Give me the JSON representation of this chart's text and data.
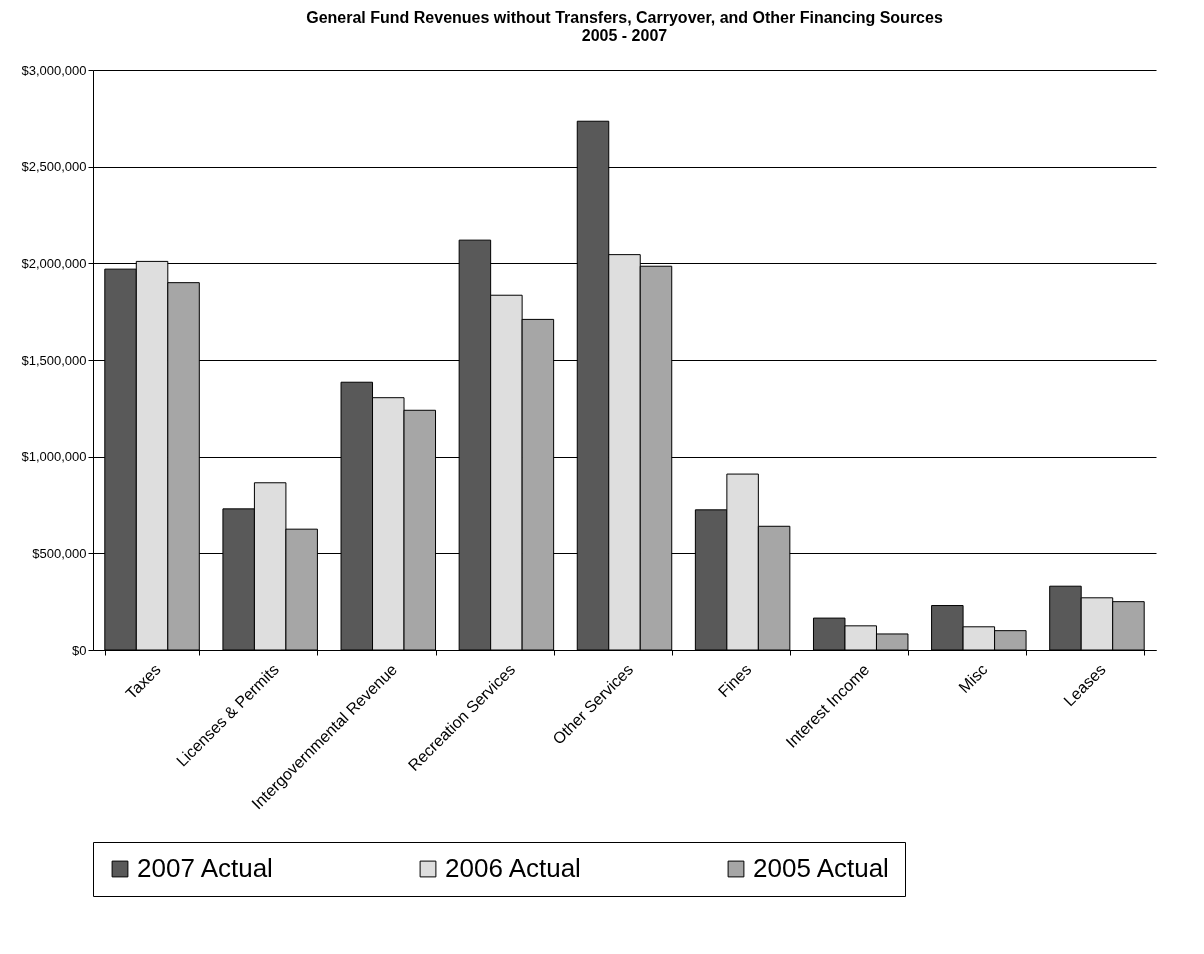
{
  "chart_data": {
    "type": "bar",
    "title": "General Fund Revenues without Transfers, Carryover, and Other Financing Sources\n2005 - 2007",
    "categories": [
      "Taxes",
      "Licenses & Permits",
      "Intergovernmental Revenue",
      "Recreation Services",
      "Other Services",
      "Fines",
      "Interest Income",
      "Misc",
      "Leases"
    ],
    "series": [
      {
        "name": "2007 Actual",
        "color": "#595959",
        "values": [
          1970000,
          730000,
          1385000,
          2120000,
          2735000,
          725000,
          165000,
          230000,
          330000
        ]
      },
      {
        "name": "2006 Actual",
        "color": "#dedede",
        "values": [
          2010000,
          865000,
          1305000,
          1835000,
          2045000,
          910000,
          125000,
          120000,
          270000
        ]
      },
      {
        "name": "2005 Actual",
        "color": "#a6a6a6",
        "values": [
          1900000,
          625000,
          1240000,
          1710000,
          1985000,
          640000,
          83000,
          100000,
          250000
        ]
      }
    ],
    "ylim": [
      0,
      3000000
    ],
    "yticks": [
      {
        "value": 0,
        "label": "$0"
      },
      {
        "value": 500000,
        "label": "$500,000"
      },
      {
        "value": 1000000,
        "label": "$1,000,000"
      },
      {
        "value": 1500000,
        "label": "$1,500,000"
      },
      {
        "value": 2000000,
        "label": "$2,000,000"
      },
      {
        "value": 2500000,
        "label": "$2,500,000"
      },
      {
        "value": 3000000,
        "label": "$3,000,000"
      }
    ],
    "grid": "y",
    "legend": "bottom"
  }
}
